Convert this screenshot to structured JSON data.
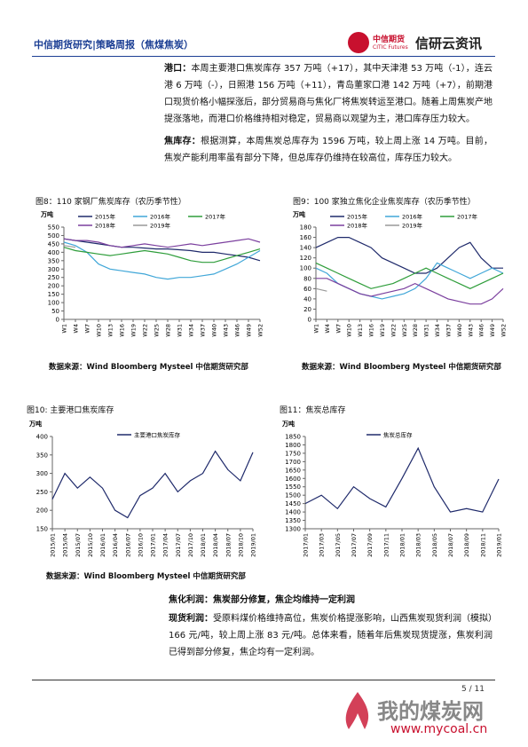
{
  "header": {
    "title": "中信期货研究|策略周报（焦煤焦炭）",
    "logo_cn": "中信期货",
    "logo_en": "CITIC Futures",
    "brand": "信研云资讯"
  },
  "paragraphs": [
    {
      "label": "港口：",
      "text": "本周主要港口焦炭库存 357 万吨（+17），其中天津港 53 万吨（-1），连云港 6 万吨（-），日照港 156 万吨（+11），青岛董家口港 142 万吨（+7），前期港口现货价格小幅探涨后，部分贸易商与焦化厂将焦炭转运至港口。随着上周焦炭产地提涨落地，而港口价格维持相对稳定，贸易商以观望为主，港口库存压力较大。"
    },
    {
      "label": "焦库存：",
      "text": "根据测算，本周焦炭总库存为 1596 万吨，较上周上涨 14 万吨。目前，焦炭产能利用率虽有部分下降，但总库存仍维持在较高位，库存压力较大。"
    }
  ],
  "sources": [
    "数据来源：Wind Bloomberg Mysteel 中信期货研究部",
    "数据来源：Wind Bloomberg Mysteel 中信期货研究部",
    "数据来源：Wind Bloomberg Mysteel 中信期货研究部"
  ],
  "section": {
    "heading": "焦化利润：焦炭部分修复，焦企均维持一定利润",
    "label": "现货利润：",
    "text": "受原料煤价格维持高位，焦炭价格提涨影响，山西焦炭现货利润（模拟）166 元/吨，较上周上涨 83 元/吨。总体来看，随着年后焦炭现货提涨，焦炭利润已得到部分修复，焦企均有一定利润。"
  },
  "footer": {
    "page": "5 / 11"
  },
  "watermark": {
    "name": "我的煤炭网",
    "url": "www.mycoal.cn"
  },
  "chart_data": [
    {
      "type": "line",
      "title": "图8：110 家钢厂焦炭库存（农历季节性）",
      "y_label": "万吨",
      "x": [
        1,
        4,
        7,
        10,
        13,
        16,
        19,
        22,
        25,
        28,
        31,
        34,
        37,
        40,
        43,
        46,
        49,
        52
      ],
      "xlim": [
        1,
        52
      ],
      "xticks": [
        {
          "value": 1,
          "label": "W1"
        },
        {
          "value": 4,
          "label": "W4"
        },
        {
          "value": 7,
          "label": "W7"
        },
        {
          "value": 10,
          "label": "W10"
        },
        {
          "value": 13,
          "label": "W13"
        },
        {
          "value": 16,
          "label": "W16"
        },
        {
          "value": 19,
          "label": "W19"
        },
        {
          "value": 22,
          "label": "W22"
        },
        {
          "value": 25,
          "label": "W25"
        },
        {
          "value": 28,
          "label": "W28"
        },
        {
          "value": 31,
          "label": "W31"
        },
        {
          "value": 34,
          "label": "W34"
        },
        {
          "value": 37,
          "label": "W37"
        },
        {
          "value": 40,
          "label": "W40"
        },
        {
          "value": 43,
          "label": "W43"
        },
        {
          "value": 46,
          "label": "W46"
        },
        {
          "value": 49,
          "label": "W49"
        },
        {
          "value": 52,
          "label": "W52"
        }
      ],
      "ylim": [
        0,
        550
      ],
      "yticks": [
        0,
        50,
        100,
        150,
        200,
        250,
        300,
        350,
        400,
        450,
        500,
        550
      ],
      "series": [
        {
          "name": "2015年",
          "color": "#1f2a6b",
          "values": [
            480,
            470,
            460,
            450,
            440,
            430,
            430,
            425,
            420,
            420,
            415,
            410,
            400,
            400,
            390,
            380,
            370,
            350
          ]
        },
        {
          "name": "2016年",
          "color": "#41a7d8",
          "values": [
            460,
            440,
            400,
            330,
            300,
            290,
            280,
            270,
            250,
            240,
            250,
            250,
            260,
            270,
            300,
            330,
            370,
            410
          ]
        },
        {
          "name": "2017年",
          "color": "#2e9d3a",
          "values": [
            430,
            410,
            400,
            390,
            380,
            390,
            400,
            410,
            400,
            390,
            370,
            350,
            340,
            340,
            360,
            380,
            400,
            420
          ]
        },
        {
          "name": "2018年",
          "color": "#7b3f9e",
          "values": [
            480,
            470,
            470,
            460,
            440,
            430,
            440,
            450,
            440,
            430,
            440,
            450,
            440,
            450,
            460,
            470,
            480,
            460
          ]
        },
        {
          "name": "2019年",
          "color": "#999999",
          "values": [
            440,
            430,
            null,
            null,
            null,
            null,
            null,
            null,
            null,
            null,
            null,
            null,
            null,
            null,
            null,
            null,
            null,
            null
          ]
        }
      ]
    },
    {
      "type": "line",
      "title": "图9：100 家独立焦化企业焦炭库存（农历季节性）",
      "y_label": "万吨",
      "x": [
        1,
        4,
        7,
        10,
        13,
        16,
        19,
        22,
        25,
        28,
        31,
        34,
        37,
        40,
        43,
        46,
        49,
        52
      ],
      "xlim": [
        1,
        52
      ],
      "xticks": [
        {
          "value": 1,
          "label": "W1"
        },
        {
          "value": 4,
          "label": "W4"
        },
        {
          "value": 7,
          "label": "W7"
        },
        {
          "value": 10,
          "label": "W10"
        },
        {
          "value": 13,
          "label": "W13"
        },
        {
          "value": 16,
          "label": "W16"
        },
        {
          "value": 19,
          "label": "W19"
        },
        {
          "value": 22,
          "label": "W22"
        },
        {
          "value": 25,
          "label": "W25"
        },
        {
          "value": 28,
          "label": "W28"
        },
        {
          "value": 31,
          "label": "W31"
        },
        {
          "value": 34,
          "label": "W34"
        },
        {
          "value": 37,
          "label": "W37"
        },
        {
          "value": 40,
          "label": "W40"
        },
        {
          "value": 43,
          "label": "W43"
        },
        {
          "value": 46,
          "label": "W46"
        },
        {
          "value": 49,
          "label": "W49"
        },
        {
          "value": 52,
          "label": "W52"
        }
      ],
      "ylim": [
        0,
        180
      ],
      "yticks": [
        0,
        20,
        40,
        60,
        80,
        100,
        120,
        140,
        160,
        180
      ],
      "series": [
        {
          "name": "2015年",
          "color": "#1f2a6b",
          "values": [
            140,
            150,
            160,
            160,
            150,
            140,
            120,
            110,
            100,
            90,
            90,
            100,
            120,
            140,
            150,
            120,
            100,
            100
          ]
        },
        {
          "name": "2016年",
          "color": "#41a7d8",
          "values": [
            100,
            90,
            70,
            60,
            50,
            45,
            40,
            45,
            50,
            60,
            80,
            110,
            100,
            90,
            80,
            90,
            100,
            90
          ]
        },
        {
          "name": "2017年",
          "color": "#2e9d3a",
          "values": [
            110,
            100,
            90,
            80,
            70,
            60,
            65,
            70,
            80,
            90,
            100,
            90,
            80,
            70,
            60,
            70,
            80,
            90
          ]
        },
        {
          "name": "2018年",
          "color": "#7b3f9e",
          "values": [
            80,
            80,
            70,
            60,
            50,
            45,
            50,
            55,
            60,
            70,
            60,
            50,
            40,
            35,
            30,
            30,
            40,
            60
          ]
        },
        {
          "name": "2019年",
          "color": "#999999",
          "values": [
            60,
            55,
            null,
            null,
            null,
            null,
            null,
            null,
            null,
            null,
            null,
            null,
            null,
            null,
            null,
            null,
            null,
            null
          ]
        }
      ]
    },
    {
      "type": "line",
      "title": "图10:        主要港口焦炭库存",
      "y_label": "万吨",
      "categories": [
        "2015/01",
        "2015/04",
        "2015/07",
        "2015/10",
        "2016/01",
        "2016/04",
        "2016/07",
        "2016/10",
        "2017/01",
        "2017/04",
        "2017/07",
        "2017/10",
        "2018/01",
        "2018/04",
        "2018/07",
        "2018/10",
        "2019/01"
      ],
      "ylim": [
        150,
        400
      ],
      "yticks": [
        150,
        200,
        250,
        300,
        350,
        400
      ],
      "series": [
        {
          "name": "主要港口焦炭库存",
          "color": "#1f2a6b",
          "values": [
            230,
            300,
            260,
            290,
            260,
            200,
            180,
            240,
            260,
            300,
            250,
            280,
            300,
            360,
            310,
            280,
            357
          ]
        }
      ]
    },
    {
      "type": "line",
      "title": "图11：焦炭总库存",
      "y_label": "万吨",
      "categories": [
        "2017/01",
        "2017/03",
        "2017/05",
        "2017/07",
        "2017/09",
        "2017/11",
        "2018/01",
        "2018/03",
        "2018/05",
        "2018/07",
        "2018/09",
        "2018/11",
        "2019/01"
      ],
      "ylim": [
        1300,
        1850
      ],
      "yticks": [
        1300,
        1350,
        1400,
        1450,
        1500,
        1550,
        1600,
        1650,
        1700,
        1750,
        1800,
        1850
      ],
      "series": [
        {
          "name": "焦炭总库存",
          "color": "#1f2a6b",
          "values": [
            1450,
            1500,
            1420,
            1550,
            1480,
            1430,
            1600,
            1780,
            1550,
            1400,
            1420,
            1400,
            1596
          ]
        }
      ]
    }
  ]
}
